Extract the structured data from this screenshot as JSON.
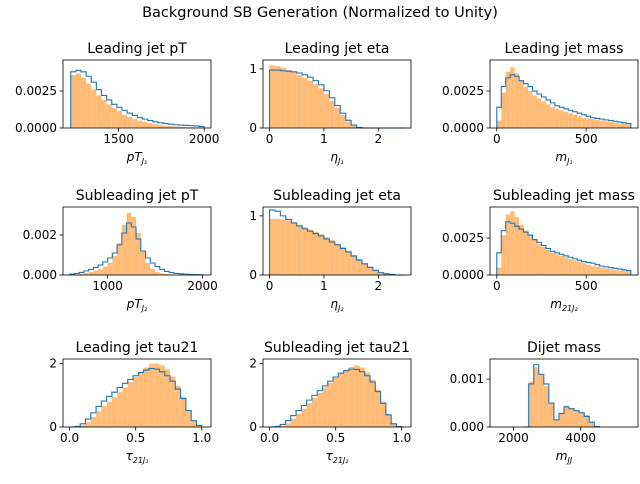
{
  "suptitle": "Background SB Generation (Normalized to Unity)",
  "colors": {
    "fill": "#ffbb78",
    "line": "#1f77b4"
  },
  "chart_data": [
    {
      "type": "histogram",
      "title": "Leading jet pT",
      "xlabel": "pT",
      "xlabel_sub": "J₁",
      "xlim": [
        1175,
        2040
      ],
      "ylim": [
        0,
        0.0046
      ],
      "xticks": [
        1500,
        2000
      ],
      "xtick_labels": [
        "1500",
        "2000"
      ],
      "yticks": [
        0,
        0.0025
      ],
      "ytick_labels": [
        "0.0000",
        "0.0025"
      ],
      "bins": [
        1220,
        1250,
        1280,
        1310,
        1340,
        1370,
        1400,
        1430,
        1460,
        1490,
        1520,
        1550,
        1580,
        1610,
        1640,
        1670,
        1700,
        1730,
        1760,
        1790,
        1820,
        1850,
        1880,
        1910,
        1940,
        1970,
        2000
      ],
      "fill_values": [
        0.0036,
        0.0037,
        0.0034,
        0.003,
        0.0026,
        0.0022,
        0.0019,
        0.0016,
        0.00135,
        0.00115,
        0.0009,
        0.00075,
        0.0006,
        0.0005,
        0.0004,
        0.00032,
        0.00026,
        0.0002,
        0.00016,
        0.00013,
        0.0001,
        8e-05,
        6e-05,
        5e-05,
        4e-05,
        3e-05
      ],
      "line_values": [
        0.0038,
        0.0039,
        0.0038,
        0.0035,
        0.0031,
        0.0026,
        0.0022,
        0.0019,
        0.0016,
        0.0014,
        0.0012,
        0.001,
        0.00085,
        0.0007,
        0.0006,
        0.0005,
        0.00042,
        0.00035,
        0.0003,
        0.00026,
        0.00022,
        0.0002,
        0.00018,
        0.00016,
        0.00014,
        0.0001
      ]
    },
    {
      "type": "histogram",
      "title": "Leading jet eta",
      "xlabel": "η",
      "xlabel_sub": "J₁",
      "xlim": [
        -0.12,
        2.6
      ],
      "ylim": [
        0,
        1.15
      ],
      "xticks": [
        0,
        1,
        2
      ],
      "xtick_labels": [
        "0",
        "1",
        "2"
      ],
      "yticks": [
        0,
        1
      ],
      "ytick_labels": [
        "0",
        "1"
      ],
      "bins": [
        0,
        0.1,
        0.2,
        0.3,
        0.4,
        0.5,
        0.6,
        0.7,
        0.8,
        0.9,
        1.0,
        1.1,
        1.2,
        1.3,
        1.4,
        1.5,
        1.6,
        1.7,
        1.8,
        1.9,
        2.0,
        2.1,
        2.2,
        2.3,
        2.4,
        2.5
      ],
      "fill_values": [
        1.06,
        1.05,
        1.02,
        0.98,
        0.94,
        0.9,
        0.85,
        0.8,
        0.74,
        0.67,
        0.58,
        0.46,
        0.34,
        0.22,
        0.11,
        0.04,
        0.01,
        0,
        0,
        0,
        0,
        0,
        0,
        0,
        0
      ],
      "line_values": [
        0.98,
        0.98,
        0.97,
        0.96,
        0.95,
        0.93,
        0.9,
        0.86,
        0.8,
        0.73,
        0.63,
        0.51,
        0.38,
        0.25,
        0.13,
        0.05,
        0.01,
        0,
        0,
        0,
        0,
        0,
        0,
        0,
        0
      ]
    },
    {
      "type": "histogram",
      "title": "Leading jet mass",
      "xlabel": "m",
      "xlabel_sub": "J₁",
      "xlim": [
        -38,
        790
      ],
      "ylim": [
        0,
        0.0046
      ],
      "xticks": [
        0,
        500
      ],
      "xtick_labels": [
        "0",
        "500"
      ],
      "yticks": [
        0,
        0.0025
      ],
      "ytick_labels": [
        "0.0000",
        "0.0025"
      ],
      "bins": [
        0,
        25,
        50,
        75,
        100,
        125,
        150,
        175,
        200,
        225,
        250,
        275,
        300,
        325,
        350,
        375,
        400,
        425,
        450,
        475,
        500,
        525,
        550,
        575,
        600,
        625,
        650,
        675,
        700,
        725,
        750
      ],
      "fill_values": [
        0.0005,
        0.0024,
        0.0038,
        0.0041,
        0.0037,
        0.0032,
        0.0028,
        0.0025,
        0.0022,
        0.002,
        0.0018,
        0.0016,
        0.0014,
        0.0013,
        0.0012,
        0.0011,
        0.001,
        0.0009,
        0.0008,
        0.0007,
        0.00065,
        0.0006,
        0.00055,
        0.0005,
        0.00045,
        0.0004,
        0.00035,
        0.0003,
        0.0003,
        0.00025
      ],
      "line_values": [
        0.0014,
        0.0028,
        0.0034,
        0.0036,
        0.0035,
        0.0032,
        0.003,
        0.0028,
        0.0025,
        0.0023,
        0.0021,
        0.0019,
        0.0017,
        0.0015,
        0.0014,
        0.0013,
        0.0012,
        0.0011,
        0.001,
        0.0009,
        0.0008,
        0.0007,
        0.00065,
        0.0006,
        0.00055,
        0.0005,
        0.00045,
        0.0004,
        0.00035,
        0.0003
      ]
    },
    {
      "type": "histogram",
      "title": "Subleading jet pT",
      "xlabel": "pT",
      "xlabel_sub": "J₂",
      "xlim": [
        530,
        2090
      ],
      "ylim": [
        0,
        0.0034
      ],
      "xticks": [
        1000,
        2000
      ],
      "xtick_labels": [
        "1000",
        "2000"
      ],
      "yticks": [
        0,
        0.002
      ],
      "ytick_labels": [
        "0.000",
        "0.002"
      ],
      "bins": [
        600,
        650,
        700,
        750,
        800,
        850,
        900,
        950,
        1000,
        1050,
        1100,
        1150,
        1200,
        1250,
        1300,
        1350,
        1400,
        1450,
        1500,
        1550,
        1600,
        1650,
        1700,
        1750,
        1800,
        1850,
        1900,
        1950,
        2000
      ],
      "fill_values": [
        2e-05,
        4e-05,
        7e-05,
        0.00011,
        0.00016,
        0.00022,
        0.0003,
        0.00042,
        0.0006,
        0.00095,
        0.0016,
        0.0025,
        0.0031,
        0.0029,
        0.0021,
        0.0012,
        0.0006,
        0.0003,
        0.00015,
        8e-05,
        5e-05,
        3e-05,
        2e-05,
        1e-05,
        0,
        0,
        0,
        0
      ],
      "line_values": [
        4e-05,
        8e-05,
        0.00013,
        0.0002,
        0.00028,
        0.00038,
        0.0005,
        0.00065,
        0.00085,
        0.0011,
        0.0015,
        0.0021,
        0.0026,
        0.0024,
        0.0018,
        0.0012,
        0.00085,
        0.0006,
        0.00042,
        0.00028,
        0.00018,
        0.00012,
        8e-05,
        6e-05,
        4e-05,
        3e-05,
        2e-05,
        1e-05
      ]
    },
    {
      "type": "histogram",
      "title": "Subleading jet eta",
      "xlabel": "η",
      "xlabel_sub": "J₂",
      "xlim": [
        -0.12,
        2.6
      ],
      "ylim": [
        0,
        1.15
      ],
      "xticks": [
        0,
        1,
        2
      ],
      "xtick_labels": [
        "0",
        "1",
        "2"
      ],
      "yticks": [
        0,
        1
      ],
      "ytick_labels": [
        "0",
        "1"
      ],
      "bins": [
        0,
        0.1,
        0.2,
        0.3,
        0.4,
        0.5,
        0.6,
        0.7,
        0.8,
        0.9,
        1.0,
        1.1,
        1.2,
        1.3,
        1.4,
        1.5,
        1.6,
        1.7,
        1.8,
        1.9,
        2.0,
        2.1,
        2.2,
        2.3,
        2.4,
        2.5
      ],
      "fill_values": [
        0.95,
        0.95,
        0.94,
        0.92,
        0.88,
        0.85,
        0.81,
        0.77,
        0.73,
        0.69,
        0.64,
        0.59,
        0.53,
        0.47,
        0.41,
        0.34,
        0.27,
        0.2,
        0.14,
        0.08,
        0.04,
        0.02,
        0.01,
        0,
        0
      ],
      "line_values": [
        1.1,
        1.08,
        1.0,
        0.94,
        0.88,
        0.83,
        0.78,
        0.74,
        0.7,
        0.66,
        0.61,
        0.56,
        0.51,
        0.45,
        0.39,
        0.32,
        0.25,
        0.19,
        0.13,
        0.08,
        0.04,
        0.02,
        0.01,
        0,
        0
      ]
    },
    {
      "type": "histogram",
      "title": "Subleading jet mass",
      "xlabel": "m",
      "xlabel_sub": "21J₂",
      "xlim": [
        -38,
        790
      ],
      "ylim": [
        0,
        0.0046
      ],
      "xticks": [
        0,
        500
      ],
      "xtick_labels": [
        "0",
        "500"
      ],
      "yticks": [
        0,
        0.0025
      ],
      "ytick_labels": [
        "0.0000",
        "0.0025"
      ],
      "bins": [
        0,
        25,
        50,
        75,
        100,
        125,
        150,
        175,
        200,
        225,
        250,
        275,
        300,
        325,
        350,
        375,
        400,
        425,
        450,
        475,
        500,
        525,
        550,
        575,
        600,
        625,
        650,
        675,
        700,
        725,
        750
      ],
      "fill_values": [
        0.0005,
        0.0027,
        0.0041,
        0.0043,
        0.0039,
        0.0034,
        0.003,
        0.0027,
        0.0024,
        0.0021,
        0.0019,
        0.0017,
        0.0015,
        0.0014,
        0.0013,
        0.0012,
        0.0011,
        0.001,
        0.0009,
        0.0008,
        0.0007,
        0.0006,
        0.00055,
        0.0005,
        0.00045,
        0.0004,
        0.00035,
        0.0003,
        0.00028,
        0.00025
      ],
      "line_values": [
        0.0015,
        0.003,
        0.0036,
        0.0035,
        0.0033,
        0.0031,
        0.0029,
        0.0027,
        0.0024,
        0.0022,
        0.002,
        0.0018,
        0.0016,
        0.0015,
        0.0014,
        0.0013,
        0.0012,
        0.0011,
        0.001,
        0.0009,
        0.00085,
        0.0008,
        0.0007,
        0.0006,
        0.00055,
        0.0005,
        0.00045,
        0.0004,
        0.00035,
        0.0003
      ]
    },
    {
      "type": "histogram",
      "title": "Leading jet tau21",
      "xlabel": "τ",
      "xlabel_sub": "21J₁",
      "xlim": [
        -0.05,
        1.07
      ],
      "ylim": [
        0,
        2.15
      ],
      "xticks": [
        0,
        0.5,
        1
      ],
      "xtick_labels": [
        "0.0",
        "0.5",
        "1.0"
      ],
      "yticks": [
        0,
        2
      ],
      "ytick_labels": [
        "0",
        "2"
      ],
      "bins": [
        0,
        0.04,
        0.08,
        0.12,
        0.16,
        0.2,
        0.24,
        0.28,
        0.32,
        0.36,
        0.4,
        0.44,
        0.48,
        0.52,
        0.56,
        0.6,
        0.64,
        0.68,
        0.72,
        0.76,
        0.8,
        0.84,
        0.88,
        0.92,
        0.96,
        1.0
      ],
      "fill_values": [
        0,
        0.01,
        0.05,
        0.15,
        0.32,
        0.5,
        0.66,
        0.8,
        0.95,
        1.1,
        1.25,
        1.42,
        1.58,
        1.75,
        1.88,
        2.0,
        2.0,
        1.95,
        1.82,
        1.6,
        1.3,
        0.95,
        0.5,
        0.18,
        0.04
      ],
      "line_values": [
        0,
        0.02,
        0.1,
        0.25,
        0.45,
        0.65,
        0.82,
        0.97,
        1.1,
        1.25,
        1.38,
        1.5,
        1.62,
        1.72,
        1.8,
        1.85,
        1.83,
        1.75,
        1.62,
        1.45,
        1.2,
        0.9,
        0.52,
        0.2,
        0.05
      ]
    },
    {
      "type": "histogram",
      "title": "Subleading jet tau21",
      "xlabel": "τ",
      "xlabel_sub": "21J₂",
      "xlim": [
        -0.05,
        1.07
      ],
      "ylim": [
        0,
        2.15
      ],
      "xticks": [
        0,
        0.5,
        1
      ],
      "xtick_labels": [
        "0.0",
        "0.5",
        "1.0"
      ],
      "yticks": [
        0,
        2
      ],
      "ytick_labels": [
        "0",
        "2"
      ],
      "bins": [
        0,
        0.04,
        0.08,
        0.12,
        0.16,
        0.2,
        0.24,
        0.28,
        0.32,
        0.36,
        0.4,
        0.44,
        0.48,
        0.52,
        0.56,
        0.6,
        0.64,
        0.68,
        0.72,
        0.76,
        0.8,
        0.84,
        0.88,
        0.92,
        0.96,
        1.0
      ],
      "fill_values": [
        0,
        0.01,
        0.04,
        0.12,
        0.26,
        0.42,
        0.58,
        0.75,
        0.92,
        1.08,
        1.25,
        1.4,
        1.55,
        1.68,
        1.8,
        1.9,
        1.95,
        1.88,
        1.72,
        1.5,
        1.18,
        0.8,
        0.42,
        0.12,
        0.02
      ],
      "line_values": [
        0,
        0.02,
        0.08,
        0.2,
        0.36,
        0.52,
        0.68,
        0.85,
        1.0,
        1.15,
        1.3,
        1.45,
        1.58,
        1.7,
        1.78,
        1.83,
        1.82,
        1.75,
        1.62,
        1.42,
        1.12,
        0.75,
        0.38,
        0.1,
        0.02
      ]
    },
    {
      "type": "histogram",
      "title": "Dijet mass",
      "xlabel": "m",
      "xlabel_sub": "JJ",
      "xlim": [
        1300,
        5700
      ],
      "ylim": [
        0,
        0.00142
      ],
      "xticks": [
        2000,
        4000
      ],
      "xtick_labels": [
        "2000",
        "4000"
      ],
      "yticks": [
        0,
        0.001
      ],
      "ytick_labels": [
        "0.000",
        "0.001"
      ],
      "bins": [
        2300,
        2450,
        2600,
        2750,
        2900,
        3050,
        3200,
        3350,
        3500,
        3650,
        3800,
        3950,
        4100,
        4250,
        4400,
        4550
      ],
      "fill_values": [
        0,
        0.00095,
        0.00125,
        0.0011,
        0.00085,
        0.0005,
        0.00015,
        0.0003,
        0.00045,
        0.0004,
        0.00035,
        0.0003,
        0.00025,
        0.0001,
        1e-05
      ],
      "line_values": [
        0,
        0.0009,
        0.0013,
        0.0011,
        0.0009,
        0.0005,
        0.00015,
        0.00028,
        0.00042,
        0.00038,
        0.00034,
        0.0003,
        0.00022,
        0.0001,
        1e-05
      ]
    }
  ]
}
